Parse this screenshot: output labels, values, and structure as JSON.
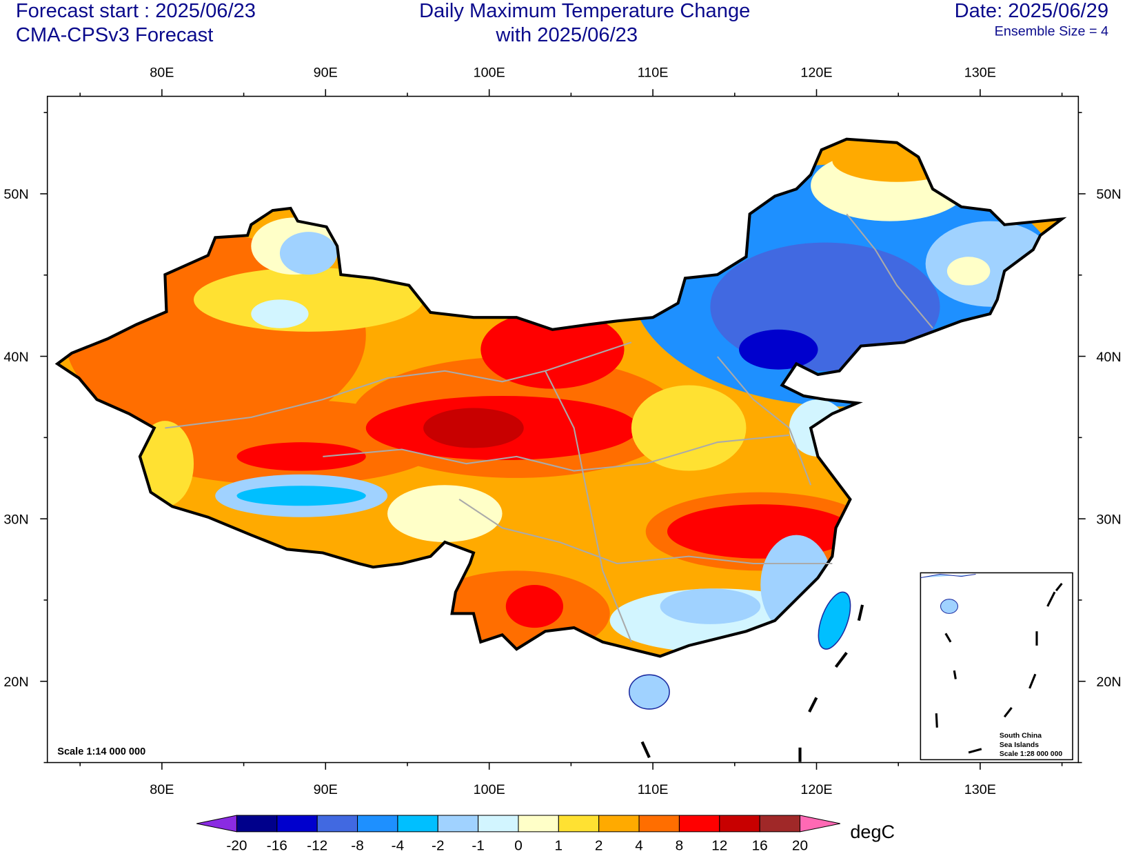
{
  "header": {
    "left": [
      "Forecast start : 2025/06/23",
      "CMA-CPSv3 Forecast"
    ],
    "title": [
      "Daily Maximum Temperature Change",
      "with 2025/06/23"
    ],
    "right": [
      "Date: 2025/06/29",
      "Ensemble Size = 4"
    ]
  },
  "map": {
    "lonlim": [
      73,
      136
    ],
    "latlim": [
      15,
      56
    ],
    "lon_ticks": [
      {
        "value": 80,
        "label": "80E"
      },
      {
        "value": 90,
        "label": "90E"
      },
      {
        "value": 100,
        "label": "100E"
      },
      {
        "value": 110,
        "label": "110E"
      },
      {
        "value": 120,
        "label": "120E"
      },
      {
        "value": 130,
        "label": "130E"
      }
    ],
    "lat_ticks": [
      {
        "value": 20,
        "label": "20N"
      },
      {
        "value": 30,
        "label": "30N"
      },
      {
        "value": 40,
        "label": "40N"
      },
      {
        "value": 50,
        "label": "50N"
      }
    ],
    "lon_minor_ticks": [
      75,
      85,
      95,
      105,
      115,
      125,
      135
    ],
    "lat_minor_ticks": [
      15,
      25,
      35,
      45,
      55
    ],
    "scale": "Scale 1:14 000 000",
    "inset": [
      "South China",
      "Sea Islands",
      "Scale 1:28 000 000"
    ]
  },
  "colorbar": {
    "levels": [
      -20,
      -16,
      -12,
      -8,
      -4,
      -2,
      -1,
      0,
      1,
      2,
      4,
      8,
      12,
      16,
      20
    ],
    "colors": [
      "#8a2be2",
      "#00008b",
      "#0000cd",
      "#4169e1",
      "#1e90ff",
      "#00bfff",
      "#a0d2ff",
      "#d2f5ff",
      "#ffffc8",
      "#ffe132",
      "#ffaa00",
      "#ff6e00",
      "#ff0000",
      "#c80000",
      "#a02828",
      "#ff69b4"
    ],
    "units": "degC"
  }
}
